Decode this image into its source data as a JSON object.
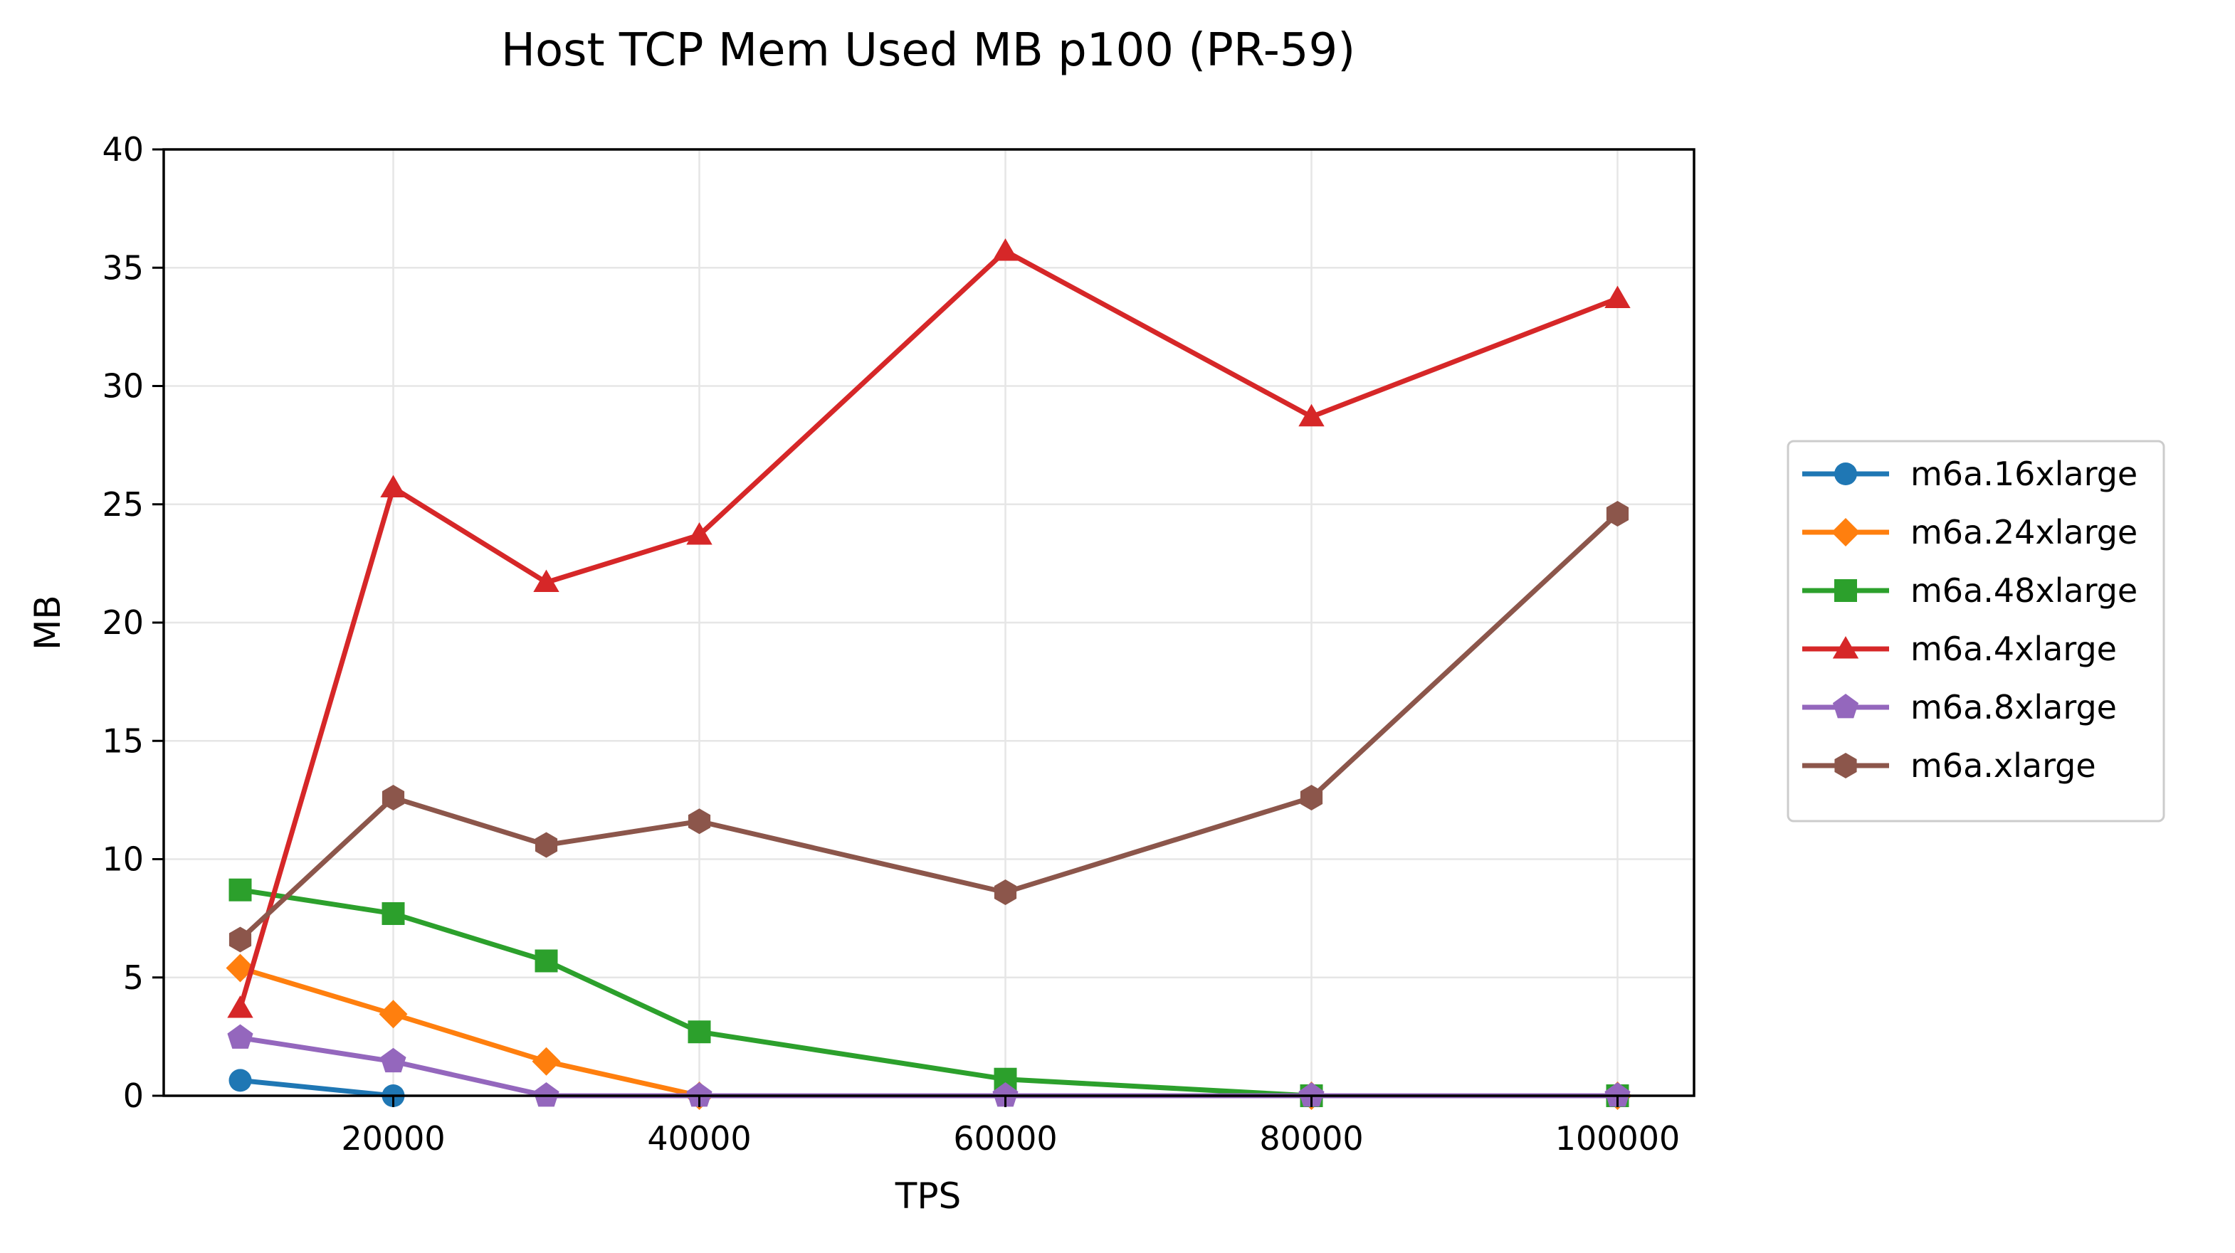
{
  "chart_data": {
    "type": "line",
    "title": "Host TCP Mem Used MB p100 (PR-59)",
    "xlabel": "TPS",
    "ylabel": "MB",
    "xlim": [
      5000,
      105000
    ],
    "ylim": [
      0,
      40
    ],
    "xticks": [
      20000,
      40000,
      60000,
      80000,
      100000
    ],
    "yticks": [
      0,
      5,
      10,
      15,
      20,
      25,
      30,
      35,
      40
    ],
    "grid": true,
    "legend_position": "right",
    "series": [
      {
        "name": "m6a.16xlarge",
        "color": "#1f77b4",
        "marker": "circle",
        "points": [
          [
            10000,
            0.65
          ],
          [
            20000,
            0.0
          ]
        ]
      },
      {
        "name": "m6a.24xlarge",
        "color": "#ff7f0e",
        "marker": "diamond",
        "points": [
          [
            10000,
            5.4
          ],
          [
            20000,
            3.45
          ],
          [
            30000,
            1.45
          ],
          [
            40000,
            0.0
          ],
          [
            80000,
            0.0
          ],
          [
            100000,
            0.0
          ]
        ]
      },
      {
        "name": "m6a.48xlarge",
        "color": "#2ca02c",
        "marker": "square",
        "points": [
          [
            10000,
            8.7
          ],
          [
            20000,
            7.7
          ],
          [
            30000,
            5.7
          ],
          [
            40000,
            2.7
          ],
          [
            60000,
            0.7
          ],
          [
            80000,
            0.0
          ],
          [
            100000,
            0.0
          ]
        ]
      },
      {
        "name": "m6a.4xlarge",
        "color": "#d62728",
        "marker": "triangle",
        "points": [
          [
            10000,
            3.7
          ],
          [
            20000,
            25.7
          ],
          [
            30000,
            21.7
          ],
          [
            40000,
            23.7
          ],
          [
            60000,
            35.7
          ],
          [
            80000,
            28.7
          ],
          [
            100000,
            33.7
          ]
        ]
      },
      {
        "name": "m6a.8xlarge",
        "color": "#9467bd",
        "marker": "pentagon",
        "points": [
          [
            10000,
            2.45
          ],
          [
            20000,
            1.45
          ],
          [
            30000,
            0.0
          ],
          [
            40000,
            0.0
          ],
          [
            60000,
            0.0
          ],
          [
            80000,
            0.0
          ],
          [
            100000,
            0.0
          ]
        ]
      },
      {
        "name": "m6a.xlarge",
        "color": "#8c564b",
        "marker": "hexagon",
        "points": [
          [
            10000,
            6.6
          ],
          [
            20000,
            12.6
          ],
          [
            30000,
            10.6
          ],
          [
            40000,
            11.6
          ],
          [
            60000,
            8.6
          ],
          [
            80000,
            12.6
          ],
          [
            100000,
            24.6
          ]
        ]
      }
    ]
  }
}
